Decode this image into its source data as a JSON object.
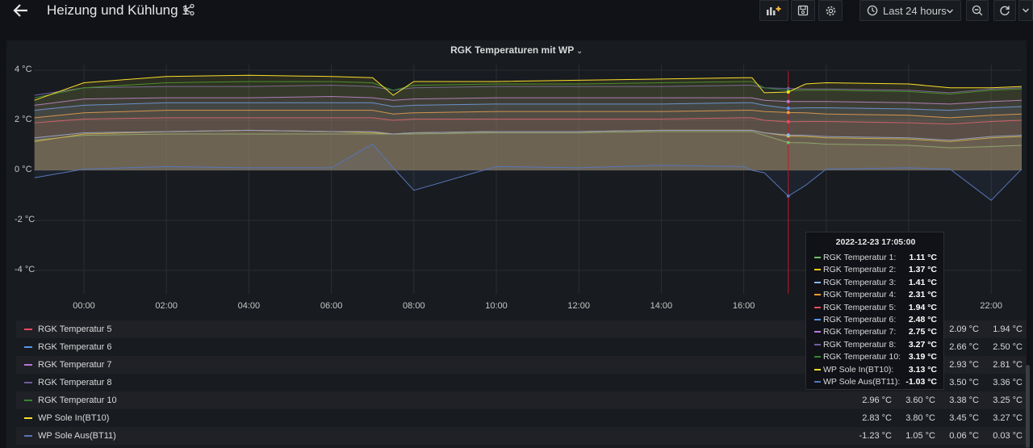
{
  "header": {
    "title": "Heizung und Kühlung 1",
    "time_range": "Last 24 hours"
  },
  "panel": {
    "title": "RGK Temperaturen mit WP"
  },
  "colors": {
    "bg": "#111217",
    "panel": "#181b1f",
    "grid": "#2c2e33",
    "crosshair": "#c4162a"
  },
  "chart_data": {
    "type": "area",
    "title": "RGK Temperaturen mit WP",
    "y_ticks": [
      "4 °C",
      "2 °C",
      "0 °C",
      "-2 °C",
      "-4 °C"
    ],
    "x_ticks": [
      "00:00",
      "02:00",
      "04:00",
      "06:00",
      "08:00",
      "10:00",
      "12:00",
      "14:00",
      "16:00",
      "18:00",
      "20:00",
      "22:00"
    ],
    "ylim": [
      -4.5,
      4.2
    ],
    "x_hours": [
      -1.2,
      0,
      2,
      4,
      6,
      7,
      7.5,
      8,
      10,
      12,
      14,
      16,
      16.2,
      16.5,
      17.08,
      17.5,
      18,
      20,
      21,
      22,
      23
    ],
    "crosshair_x": 17.08,
    "series": [
      {
        "name": "RGK Temperatur 1",
        "color": "#73bf69",
        "values": [
          1.2,
          1.4,
          1.45,
          1.45,
          1.45,
          1.45,
          1.45,
          1.45,
          1.5,
          1.5,
          1.55,
          1.55,
          1.55,
          1.4,
          1.11,
          1.1,
          1.05,
          1.0,
          0.9,
          0.95,
          1.0
        ]
      },
      {
        "name": "RGK Temperatur 2",
        "color": "#f2cc0c",
        "values": [
          1.15,
          1.45,
          1.55,
          1.6,
          1.55,
          1.5,
          1.45,
          1.5,
          1.55,
          1.55,
          1.6,
          1.6,
          1.6,
          1.5,
          1.37,
          1.35,
          1.3,
          1.25,
          1.15,
          1.3,
          1.35
        ]
      },
      {
        "name": "RGK Temperatur 3",
        "color": "#8ab8ff",
        "values": [
          1.3,
          1.5,
          1.55,
          1.6,
          1.55,
          1.55,
          1.45,
          1.5,
          1.55,
          1.55,
          1.6,
          1.6,
          1.6,
          1.5,
          1.41,
          1.4,
          1.35,
          1.3,
          1.2,
          1.35,
          1.4
        ]
      },
      {
        "name": "RGK Temperatur 4",
        "color": "#ff9830",
        "values": [
          2.1,
          2.3,
          2.4,
          2.4,
          2.4,
          2.4,
          2.25,
          2.3,
          2.35,
          2.35,
          2.35,
          2.4,
          2.4,
          2.35,
          2.31,
          2.3,
          2.25,
          2.2,
          2.1,
          2.2,
          2.25
        ]
      },
      {
        "name": "RGK Temperatur 5",
        "color": "#f2495c",
        "values": [
          1.9,
          2.05,
          2.1,
          2.1,
          2.1,
          2.1,
          2.0,
          2.05,
          2.05,
          2.05,
          2.05,
          2.1,
          2.1,
          2.0,
          1.94,
          1.95,
          1.95,
          1.9,
          1.85,
          1.95,
          2.0
        ]
      },
      {
        "name": "RGK Temperatur 6",
        "color": "#5794f2",
        "values": [
          2.4,
          2.6,
          2.7,
          2.7,
          2.7,
          2.7,
          2.55,
          2.6,
          2.65,
          2.65,
          2.65,
          2.7,
          2.7,
          2.6,
          2.48,
          2.5,
          2.5,
          2.45,
          2.4,
          2.5,
          2.55
        ]
      },
      {
        "name": "RGK Temperatur 7",
        "color": "#b877d9",
        "values": [
          2.6,
          2.85,
          2.9,
          2.9,
          2.95,
          2.9,
          2.8,
          2.85,
          2.9,
          2.9,
          2.9,
          2.9,
          2.9,
          2.8,
          2.75,
          2.75,
          2.75,
          2.7,
          2.65,
          2.75,
          2.8
        ]
      },
      {
        "name": "RGK Temperatur 8",
        "color": "#705da0",
        "values": [
          3.0,
          3.3,
          3.35,
          3.35,
          3.4,
          3.35,
          3.2,
          3.3,
          3.35,
          3.35,
          3.35,
          3.4,
          3.4,
          3.3,
          3.27,
          3.25,
          3.25,
          3.2,
          3.1,
          3.25,
          3.3
        ]
      },
      {
        "name": "RGK Temperatur 10",
        "color": "#37872d",
        "values": [
          2.9,
          3.3,
          3.5,
          3.55,
          3.55,
          3.5,
          3.2,
          3.4,
          3.45,
          3.45,
          3.5,
          3.55,
          3.55,
          3.3,
          3.19,
          3.2,
          3.2,
          3.15,
          3.05,
          3.2,
          3.25
        ]
      },
      {
        "name": "WP Sole In(BT10)",
        "color": "#fade2a",
        "values": [
          2.8,
          3.5,
          3.75,
          3.8,
          3.75,
          3.7,
          3.0,
          3.55,
          3.55,
          3.6,
          3.65,
          3.7,
          3.7,
          3.1,
          3.13,
          3.45,
          3.5,
          3.45,
          3.3,
          3.3,
          3.35
        ]
      },
      {
        "name": "WP Sole Aus(BT11)",
        "color": "#5776b9",
        "values": [
          -0.3,
          0.05,
          0.15,
          0.1,
          0.1,
          1.05,
          0.1,
          -0.8,
          0.15,
          0.1,
          0.2,
          0.15,
          0.0,
          -0.1,
          -1.03,
          -0.6,
          0.05,
          0.1,
          0.05,
          -1.2,
          0.05
        ]
      }
    ]
  },
  "legend": {
    "rows": [
      {
        "name": "RGK Temperatur 5",
        "color": "#f2495c",
        "values": [
          "2.09 °C",
          "1.94 °C"
        ]
      },
      {
        "name": "RGK Temperatur 6",
        "color": "#5794f2",
        "values": [
          "2.66 °C",
          "2.50 °C"
        ]
      },
      {
        "name": "RGK Temperatur 7",
        "color": "#b877d9",
        "values": [
          "2.93 °C",
          "2.81 °C"
        ]
      },
      {
        "name": "RGK Temperatur 8",
        "color": "#705da0",
        "values": [
          "3.50 °C",
          "3.36 °C"
        ]
      },
      {
        "name": "RGK Temperatur 10",
        "color": "#37872d",
        "values": [
          "2.96 °C",
          "3.60 °C",
          "3.38 °C",
          "3.25 °C"
        ]
      },
      {
        "name": "WP Sole In(BT10)",
        "color": "#fade2a",
        "values": [
          "2.83 °C",
          "3.80 °C",
          "3.45 °C",
          "3.27 °C"
        ]
      },
      {
        "name": "WP Sole Aus(BT11)",
        "color": "#5776b9",
        "values": [
          "-1.23 °C",
          "1.05 °C",
          "0.06 °C",
          "0.03 °C"
        ]
      }
    ]
  },
  "tooltip": {
    "time": "2022-12-23 17:05:00",
    "rows": [
      {
        "name": "RGK Temperatur 1:",
        "color": "#73bf69",
        "value": "1.11 °C"
      },
      {
        "name": "RGK Temperatur 2:",
        "color": "#f2cc0c",
        "value": "1.37 °C"
      },
      {
        "name": "RGK Temperatur 3:",
        "color": "#8ab8ff",
        "value": "1.41 °C"
      },
      {
        "name": "RGK Temperatur 4:",
        "color": "#ff9830",
        "value": "2.31 °C"
      },
      {
        "name": "RGK Temperatur 5:",
        "color": "#f2495c",
        "value": "1.94 °C"
      },
      {
        "name": "RGK Temperatur 6:",
        "color": "#5794f2",
        "value": "2.48 °C"
      },
      {
        "name": "RGK Temperatur 7:",
        "color": "#b877d9",
        "value": "2.75 °C"
      },
      {
        "name": "RGK Temperatur 8:",
        "color": "#705da0",
        "value": "3.27 °C"
      },
      {
        "name": "RGK Temperatur 10:",
        "color": "#37872d",
        "value": "3.19 °C"
      },
      {
        "name": "WP Sole In(BT10):",
        "color": "#fade2a",
        "value": "3.13 °C"
      },
      {
        "name": "WP Sole Aus(BT11):",
        "color": "#5776b9",
        "value": "-1.03 °C"
      }
    ]
  }
}
